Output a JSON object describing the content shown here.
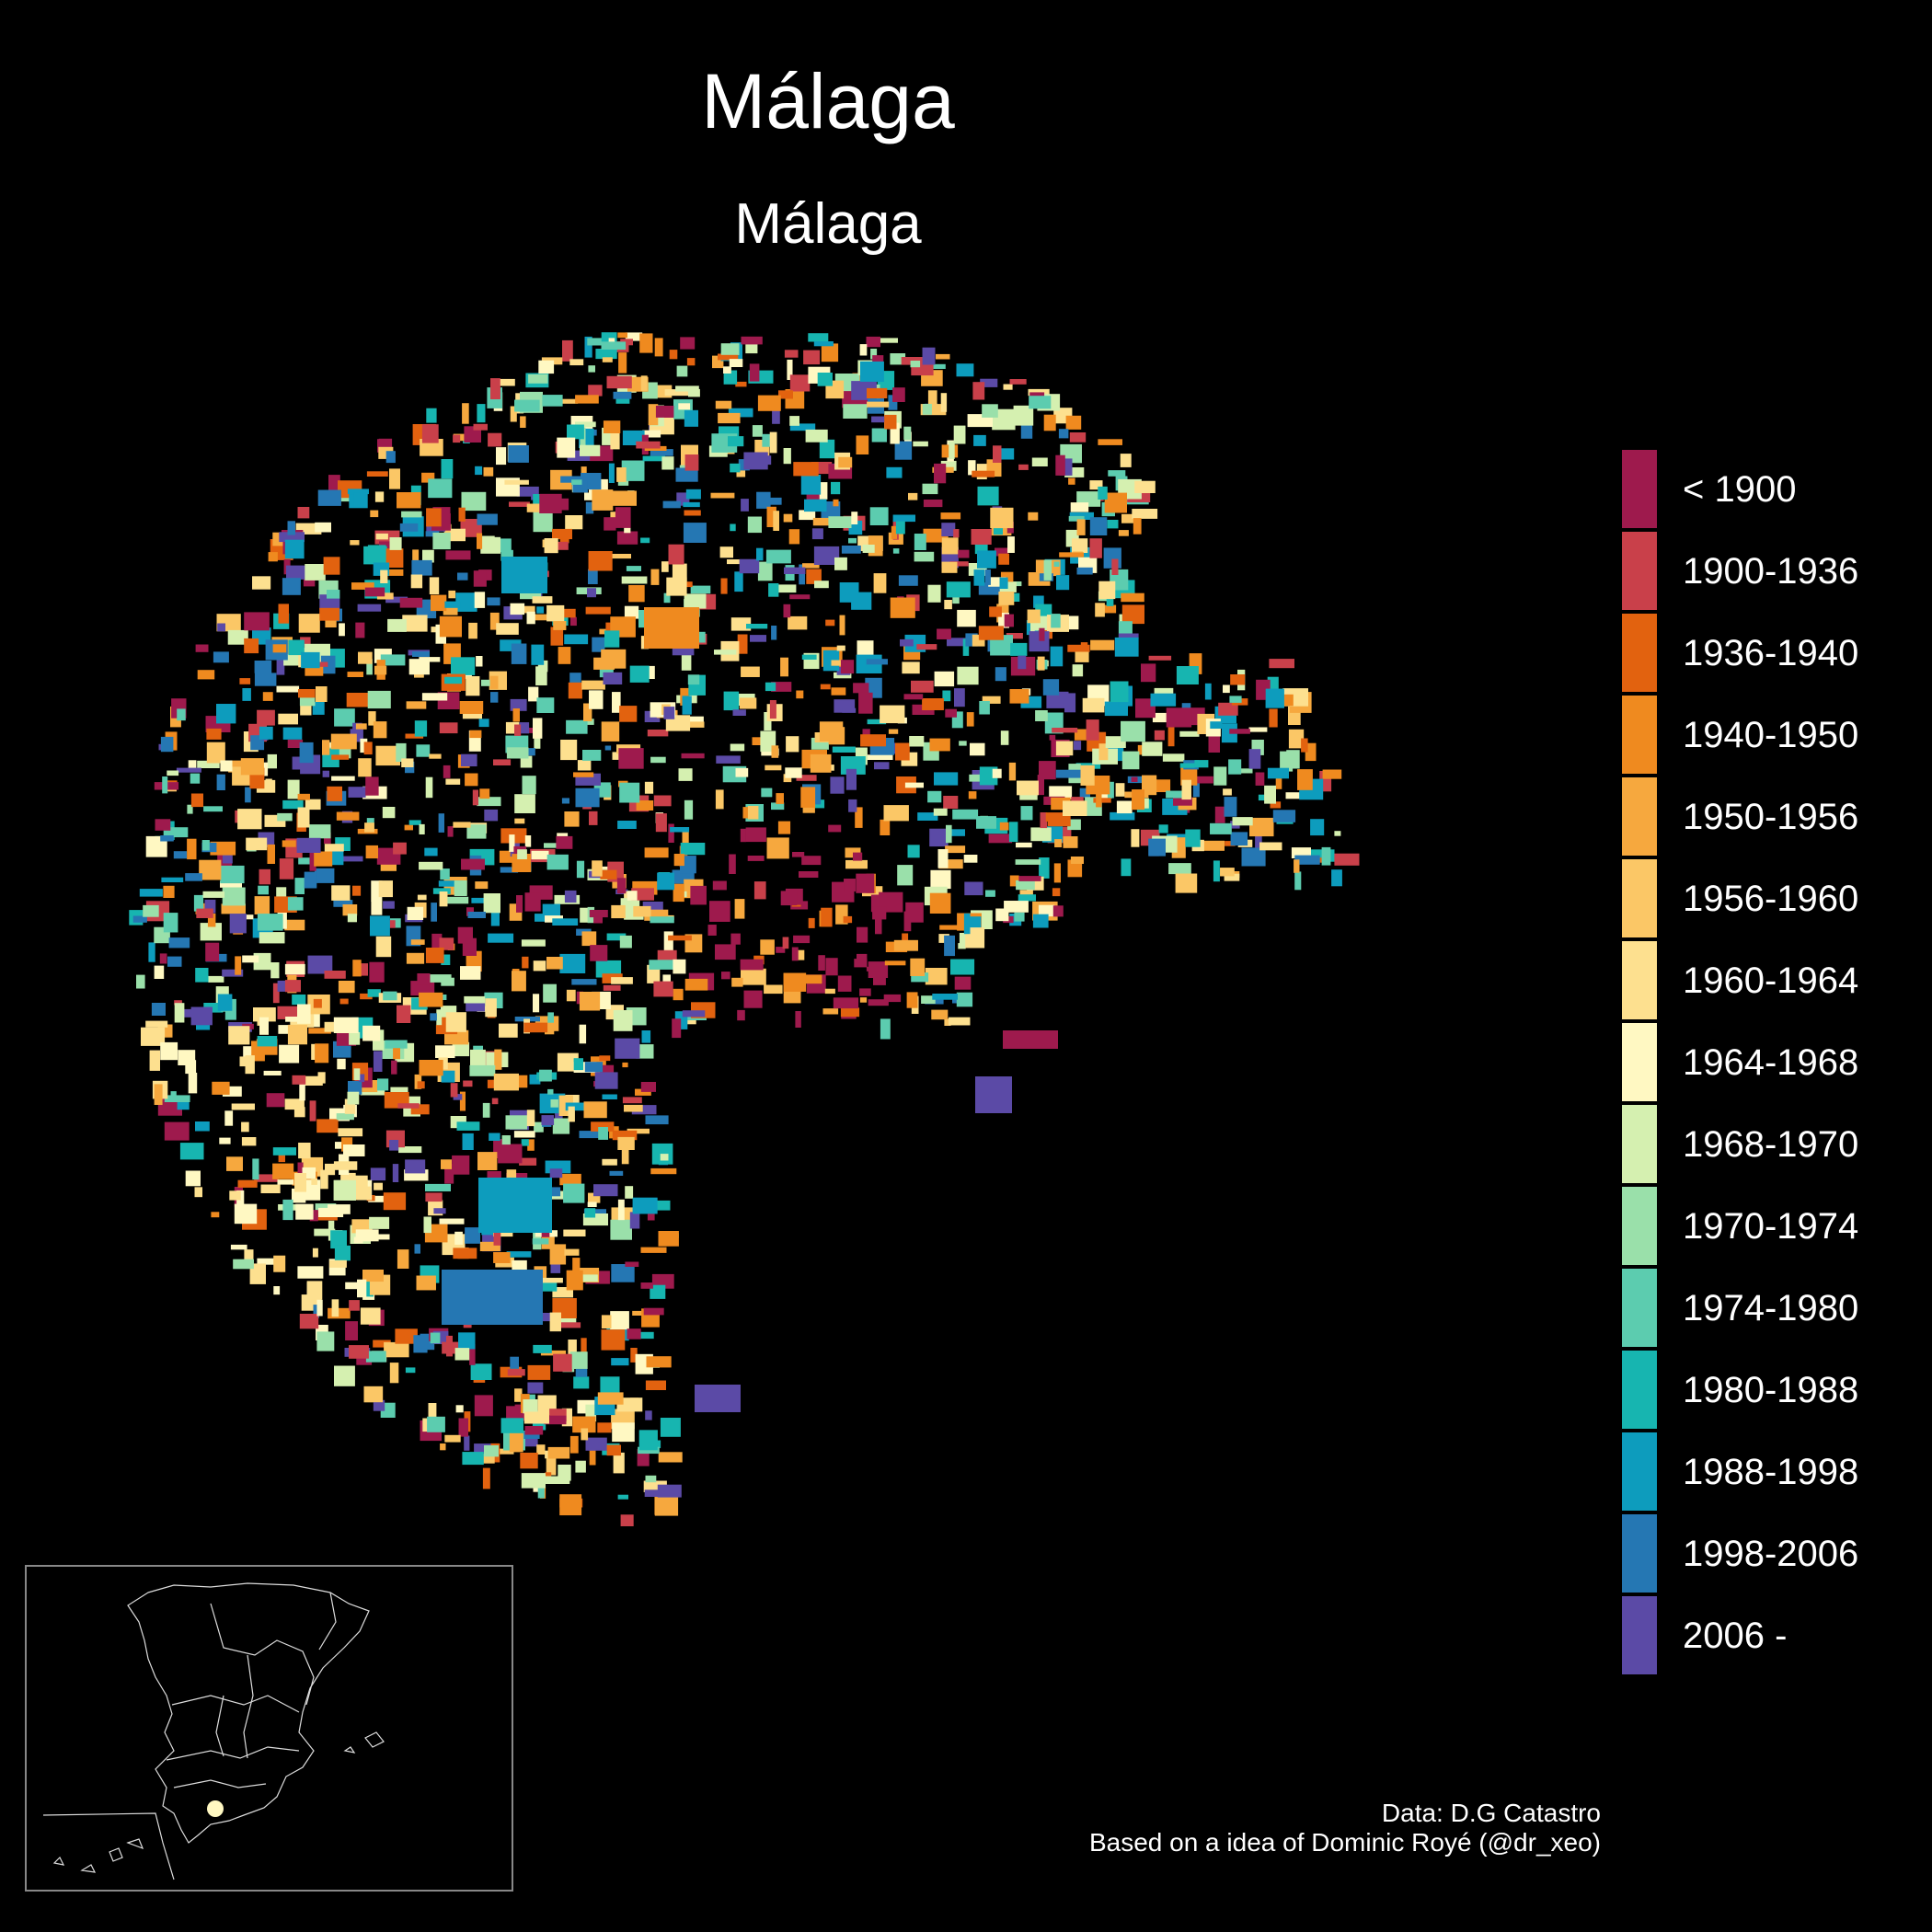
{
  "title": "Málaga",
  "subtitle": "Málaga",
  "legend": {
    "items": [
      {
        "label": "< 1900",
        "color": "#9e1a4d"
      },
      {
        "label": "1900-1936",
        "color": "#c9404a"
      },
      {
        "label": "1936-1940",
        "color": "#e2620f"
      },
      {
        "label": "1940-1950",
        "color": "#ef8a1f"
      },
      {
        "label": "1950-1956",
        "color": "#f6a83e"
      },
      {
        "label": "1956-1960",
        "color": "#fbc766"
      },
      {
        "label": "1960-1964",
        "color": "#fde08f"
      },
      {
        "label": "1964-1968",
        "color": "#fff8c2"
      },
      {
        "label": "1968-1970",
        "color": "#d5f0b0"
      },
      {
        "label": "1970-1974",
        "color": "#9ae0aa"
      },
      {
        "label": "1974-1980",
        "color": "#5cccaf"
      },
      {
        "label": "1980-1988",
        "color": "#17b5b0"
      },
      {
        "label": "1988-1998",
        "color": "#0d9cbd"
      },
      {
        "label": "1998-2006",
        "color": "#2577b3"
      },
      {
        "label": "2006 -",
        "color": "#5b4aa6"
      }
    ]
  },
  "caption": {
    "line1": "Data: D.G Catastro",
    "line2": "Based on a idea of Dominic Royé (@dr_xeo)"
  },
  "inset": {
    "highlight_color": "#fff8c2"
  }
}
